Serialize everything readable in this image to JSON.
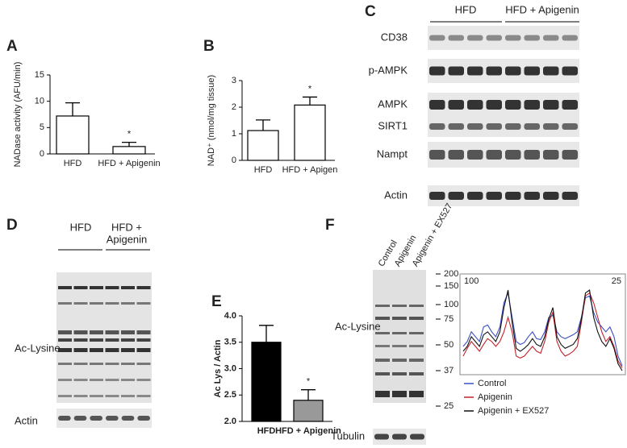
{
  "chart_data": [
    {
      "type": "bar",
      "panel": "A",
      "y_label": "NADase activity  (AFU/min)",
      "categories": [
        "HFD",
        "HFD + Apigenin"
      ],
      "values": [
        7.2,
        1.4
      ],
      "errors": [
        2.5,
        0.8
      ],
      "significance": [
        null,
        "*"
      ],
      "colors": [
        "#ffffff",
        "#ffffff"
      ],
      "ylim": [
        0,
        15
      ],
      "yticks": [
        0,
        5,
        10,
        15
      ]
    },
    {
      "type": "bar",
      "panel": "B",
      "y_label": "NAD⁺ (nmol/mg tissue)",
      "categories": [
        "HFD",
        "HFD + Apigen"
      ],
      "values": [
        1.12,
        2.08
      ],
      "errors": [
        0.4,
        0.3
      ],
      "significance": [
        null,
        "*"
      ],
      "colors": [
        "#ffffff",
        "#ffffff"
      ],
      "ylim": [
        0,
        3
      ],
      "yticks": [
        0,
        1,
        2,
        3
      ]
    },
    {
      "type": "bar",
      "panel": "E",
      "y_label": "Ac Lys / Actin",
      "categories": [
        "HFD",
        "HFD + Apigenin"
      ],
      "values": [
        3.5,
        2.4
      ],
      "errors": [
        0.32,
        0.2
      ],
      "significance": [
        null,
        "*"
      ],
      "colors": [
        "#000000",
        "#999999"
      ],
      "ylim": [
        2,
        4
      ],
      "yticks": [
        {
          "value": 2,
          "label": "2.0"
        },
        {
          "value": 2.5,
          "label": "2.5"
        },
        {
          "value": 3,
          "label": "3.0"
        },
        {
          "value": 3.5,
          "label": "3.5"
        },
        {
          "value": 4,
          "label": "4.0"
        }
      ]
    },
    {
      "type": "line",
      "corner_labels": [
        "100",
        "25"
      ],
      "series": [
        {
          "name": "Control",
          "color": "#3a4fc4",
          "values": [
            40,
            45,
            55,
            50,
            45,
            60,
            62,
            55,
            50,
            60,
            85,
            95,
            70,
            45,
            42,
            44,
            50,
            55,
            48,
            47,
            55,
            70,
            72,
            55,
            50,
            48,
            50,
            52,
            55,
            70,
            90,
            92,
            75,
            65,
            60,
            55,
            60,
            50,
            30,
            20
          ]
        },
        {
          "name": "Apigenin",
          "color": "#c0232b",
          "values": [
            30,
            38,
            45,
            40,
            35,
            42,
            48,
            45,
            40,
            45,
            55,
            70,
            55,
            30,
            28,
            30,
            35,
            40,
            35,
            33,
            45,
            65,
            75,
            45,
            35,
            30,
            32,
            35,
            40,
            65,
            92,
            95,
            85,
            70,
            55,
            45,
            50,
            40,
            25,
            18
          ]
        },
        {
          "name": "Apigenin + EX527",
          "color": "#111111",
          "values": [
            35,
            40,
            50,
            45,
            40,
            52,
            55,
            50,
            45,
            55,
            80,
            98,
            65,
            38,
            35,
            38,
            42,
            48,
            42,
            40,
            50,
            68,
            80,
            50,
            42,
            38,
            40,
            42,
            48,
            68,
            95,
            98,
            70,
            55,
            45,
            40,
            48,
            38,
            22,
            15
          ]
        }
      ]
    }
  ],
  "blots": {
    "c": {
      "panel": "C",
      "groups": [
        "HFD",
        "HFD + Apigenin"
      ],
      "rows": [
        "CD38",
        "p-AMPK",
        "AMPK",
        "SIRT1",
        "Nampt",
        "Actin"
      ]
    },
    "d": {
      "panel": "D",
      "groups": [
        "HFD",
        "HFD +",
        "Apigenin"
      ],
      "rows": [
        "Ac-Lysine",
        "Actin"
      ]
    },
    "f": {
      "panel": "F",
      "lanes": [
        "Control",
        "Apigenin",
        "Apigenin + EX527"
      ],
      "rows": [
        "Ac-Lysine",
        "Tubulin"
      ],
      "markers": [
        200,
        150,
        100,
        75,
        50,
        37,
        25
      ]
    }
  }
}
